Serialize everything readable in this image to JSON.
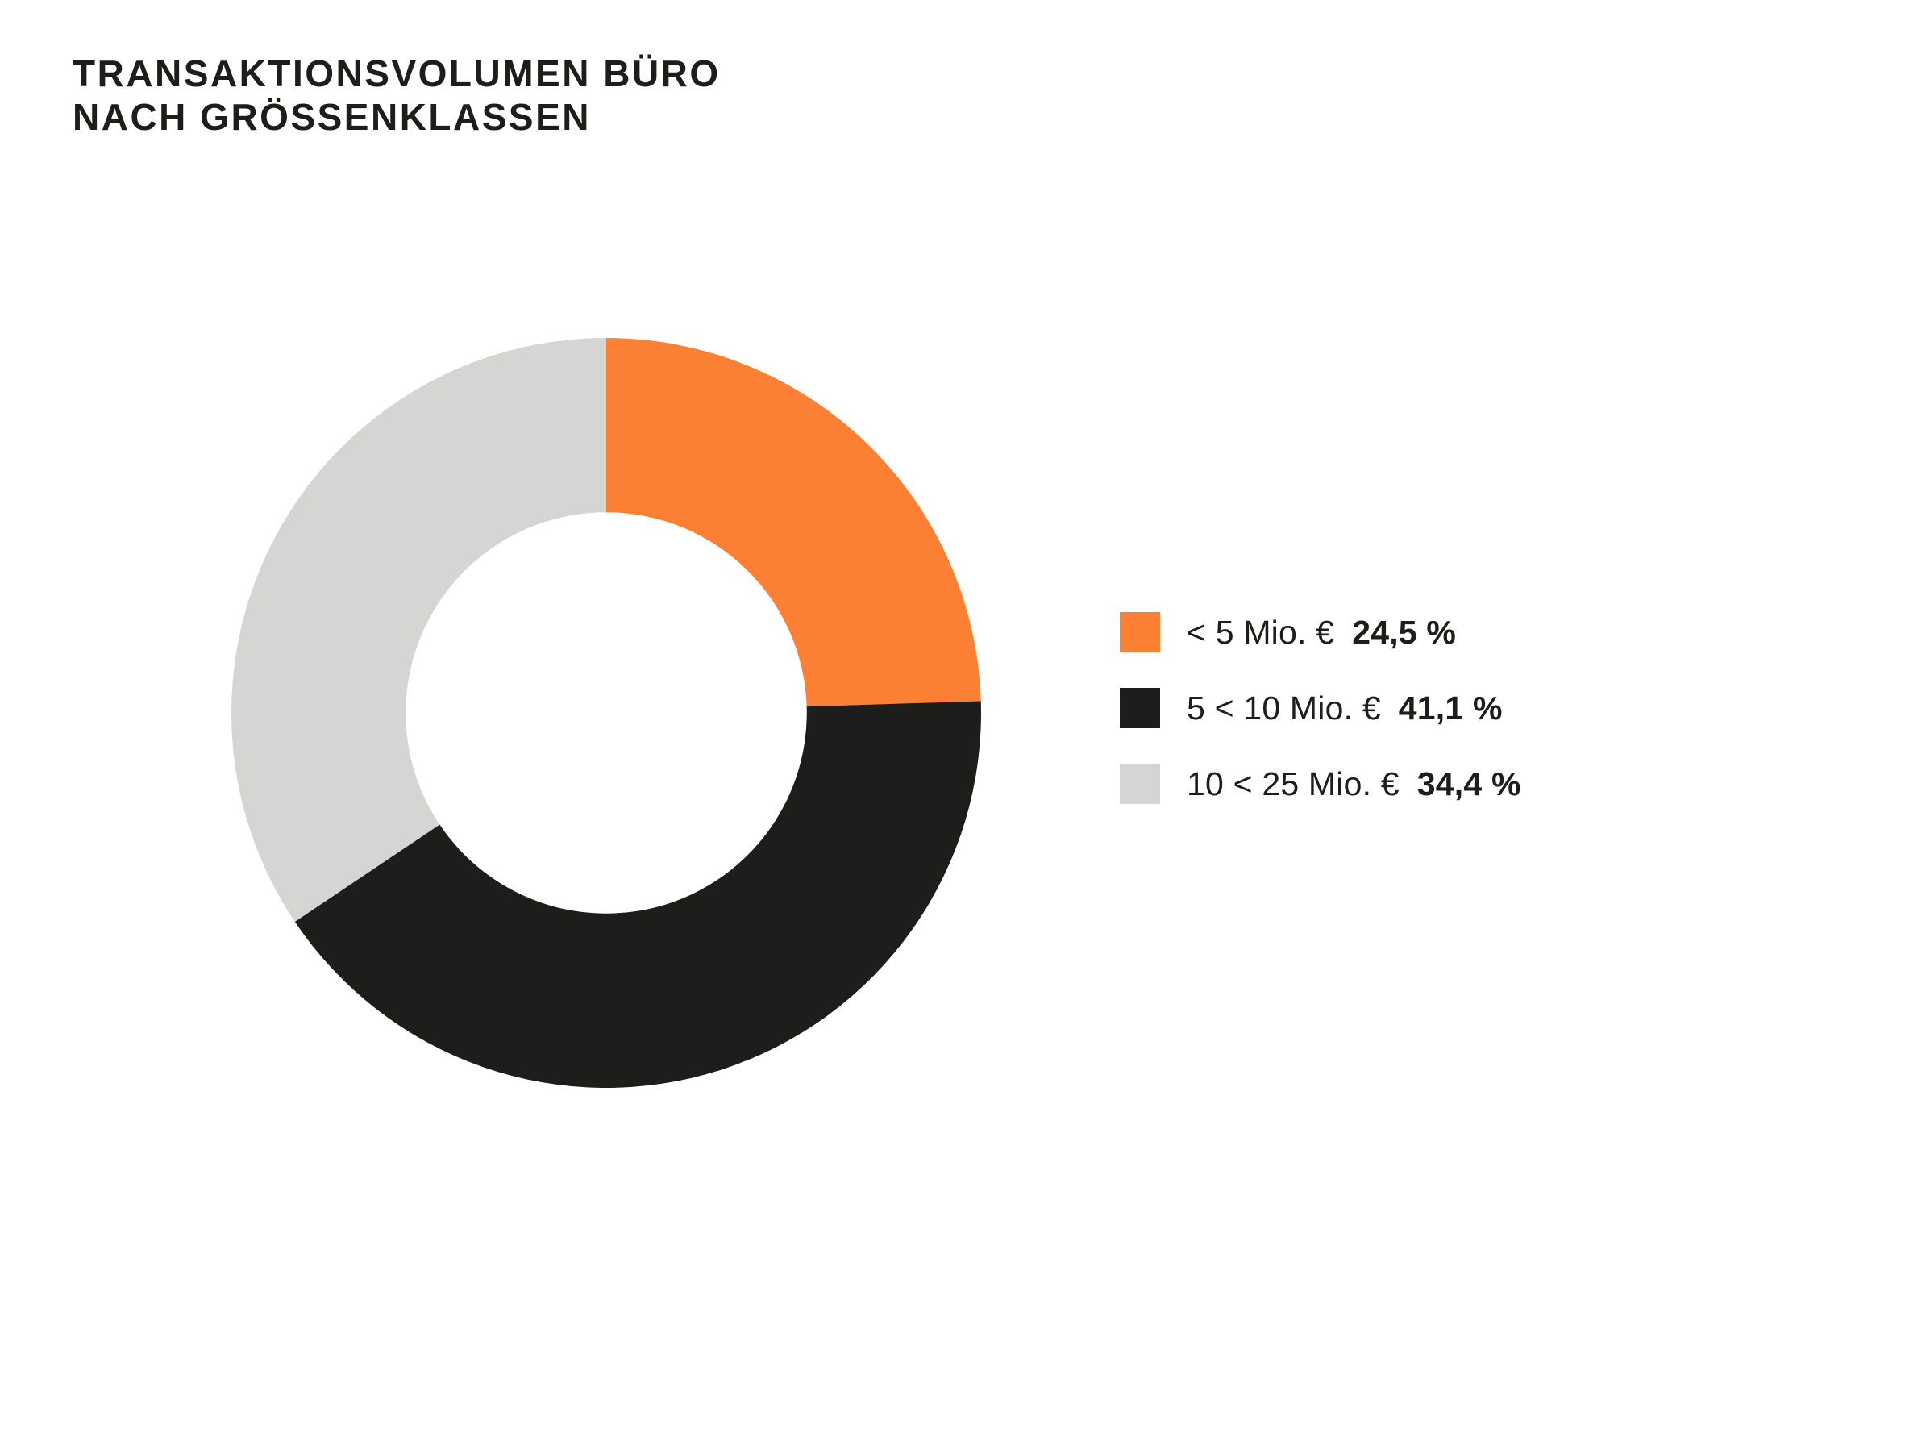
{
  "page": {
    "background_color": "#FFFFFF",
    "text_color": "#1D1D1B"
  },
  "title": {
    "line1": "TRANSAKTIONSVOLUMEN BÜRO",
    "line2": "NACH GRÖSSENKLASSEN"
  },
  "chart_data": {
    "type": "pie",
    "subtype": "donut",
    "title": "Transaktionsvolumen Büro nach Grössenklassen",
    "categories": [
      "< 5 Mio. €",
      "5 < 10 Mio. €",
      "10 < 25 Mio. €"
    ],
    "values": [
      24.5,
      41.1,
      34.4
    ],
    "value_labels": [
      "24,5 %",
      "41,1 %",
      "34,4 %"
    ],
    "colors": [
      "#FB8033",
      "#1D1D1B",
      "#D5D5D4"
    ],
    "start_angle_deg": 0,
    "direction": "clockwise",
    "inner_radius_ratio": 0.535,
    "legend_position": "right",
    "grid": false
  },
  "legend": {
    "items": [
      {
        "label": "< 5 Mio. €",
        "value": "24,5 %",
        "color": "#FB8033"
      },
      {
        "label": "5 < 10 Mio. €",
        "value": "41,1 %",
        "color": "#1D1D1B"
      },
      {
        "label": "10 < 25 Mio. €",
        "value": "34,4 %",
        "color": "#D5D5D4"
      }
    ]
  }
}
